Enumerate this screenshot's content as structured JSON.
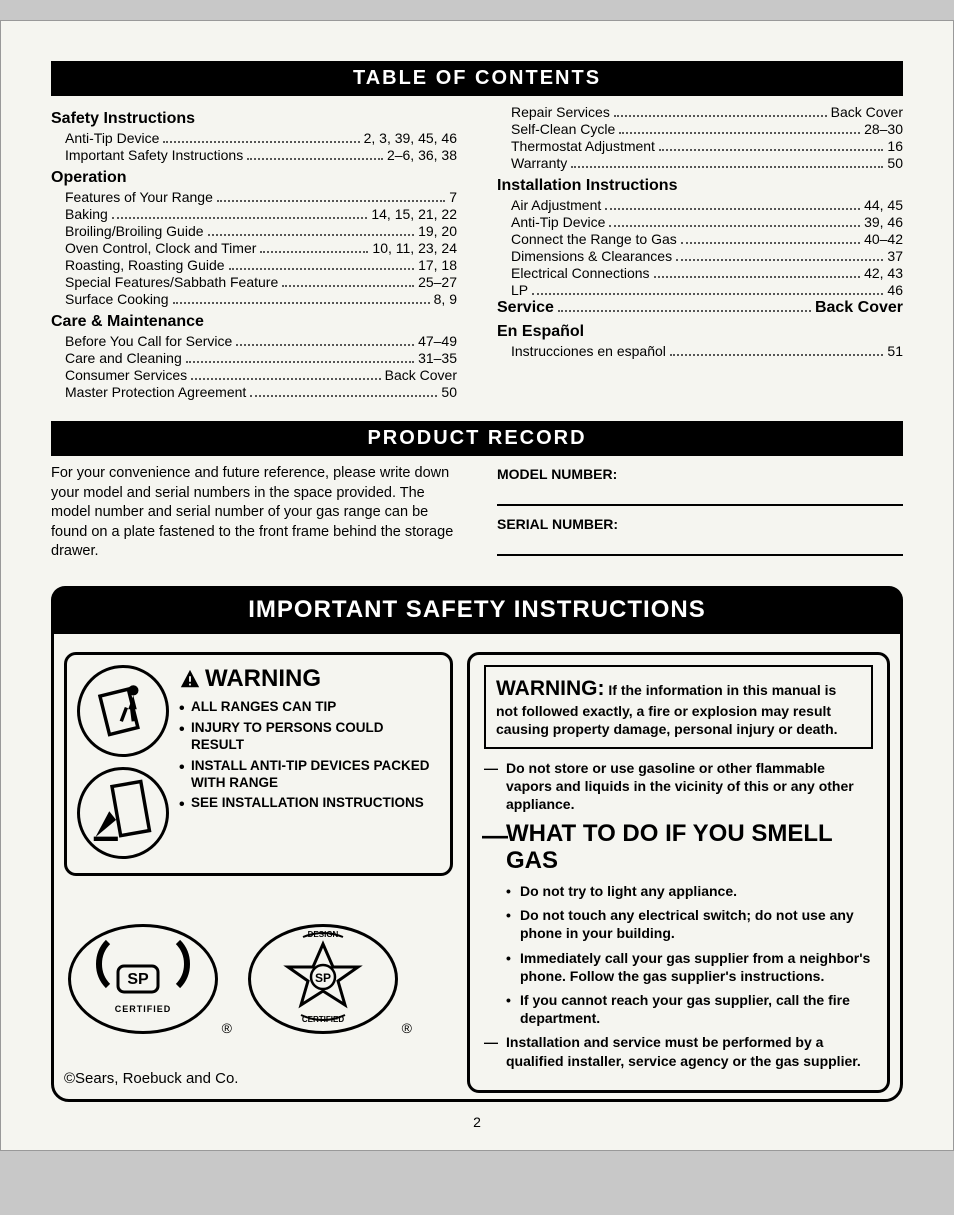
{
  "header_toc": "TABLE OF CONTENTS",
  "header_product": "PRODUCT RECORD",
  "header_safety": "IMPORTANT SAFETY INSTRUCTIONS",
  "toc_left": [
    {
      "type": "heading",
      "text": "Safety Instructions"
    },
    {
      "type": "entry",
      "label": "Anti-Tip Device",
      "page": "2, 3, 39, 45, 46"
    },
    {
      "type": "entry",
      "label": "Important Safety Instructions",
      "page": "2–6, 36, 38"
    },
    {
      "type": "heading",
      "text": "Operation"
    },
    {
      "type": "entry",
      "label": "Features of Your Range",
      "page": "7"
    },
    {
      "type": "entry",
      "label": "Baking",
      "page": "14, 15, 21, 22"
    },
    {
      "type": "entry",
      "label": "Broiling/Broiling Guide",
      "page": "19, 20"
    },
    {
      "type": "entry",
      "label": "Oven Control, Clock and Timer",
      "page": "10, 11, 23, 24"
    },
    {
      "type": "entry",
      "label": "Roasting, Roasting Guide",
      "page": "17, 18"
    },
    {
      "type": "entry",
      "label": "Special Features/Sabbath Feature",
      "page": "25–27"
    },
    {
      "type": "entry",
      "label": "Surface Cooking",
      "page": "8, 9"
    },
    {
      "type": "heading",
      "text": "Care & Maintenance"
    },
    {
      "type": "entry",
      "label": "Before You Call for Service",
      "page": "47–49"
    },
    {
      "type": "entry",
      "label": "Care and Cleaning",
      "page": "31–35"
    },
    {
      "type": "entry",
      "label": "Consumer Services",
      "page": "Back Cover"
    },
    {
      "type": "entry",
      "label": "Master Protection Agreement",
      "page": "50"
    }
  ],
  "toc_right": [
    {
      "type": "entry",
      "label": "Repair Services",
      "page": "Back Cover"
    },
    {
      "type": "entry",
      "label": "Self-Clean Cycle",
      "page": "28–30"
    },
    {
      "type": "entry",
      "label": "Thermostat Adjustment",
      "page": "16"
    },
    {
      "type": "entry",
      "label": "Warranty",
      "page": "50"
    },
    {
      "type": "heading",
      "text": "Installation Instructions"
    },
    {
      "type": "entry",
      "label": "Air Adjustment",
      "page": "44, 45"
    },
    {
      "type": "entry",
      "label": "Anti-Tip Device",
      "page": "39, 46"
    },
    {
      "type": "entry",
      "label": "Connect the Range to Gas",
      "page": "40–42"
    },
    {
      "type": "entry",
      "label": "Dimensions & Clearances",
      "page": "37"
    },
    {
      "type": "entry",
      "label": "Electrical Connections",
      "page": "42, 43"
    },
    {
      "type": "entry",
      "label": "LP",
      "page": "46"
    },
    {
      "type": "service",
      "label": "Service",
      "page": "Back Cover"
    },
    {
      "type": "heading",
      "text": "En Español"
    },
    {
      "type": "entry",
      "label": "Instrucciones en español",
      "page": "51"
    }
  ],
  "product_record": {
    "intro": "For your convenience and future reference, please write down your model and serial numbers in the space provided. The model number and serial number of your gas range can be found on a plate fastened to the front frame behind the storage drawer.",
    "model_label": "MODEL NUMBER:",
    "serial_label": "SERIAL NUMBER:"
  },
  "warning_left": {
    "title": "WARNING",
    "bullets": [
      "ALL RANGES CAN TIP",
      "INJURY TO PERSONS COULD RESULT",
      "INSTALL ANTI-TIP DEVICES PACKED WITH RANGE",
      "SEE INSTALLATION INSTRUCTIONS"
    ]
  },
  "cert_labels": {
    "certified": "CERTIFIED",
    "design": "DESIGN",
    "reg": "®"
  },
  "warning_right": {
    "box_title": "WARNING:",
    "box_body": "If the information in this manual is not followed exactly, a fire or explosion may result causing property damage, personal injury or death.",
    "dash1": "Do not store or use gasoline or other flammable vapors and liquids in the vicinity of this or any other appliance.",
    "smell_title": "WHAT TO DO IF YOU SMELL GAS",
    "bullets": [
      "Do not try to light any appliance.",
      "Do not touch any electrical switch; do not use any phone in your building.",
      "Immediately call your gas supplier from a neighbor's phone. Follow the gas supplier's instructions.",
      "If you cannot reach your gas supplier, call the fire department."
    ],
    "dash2": "Installation and service must be performed by a qualified installer, service agency or the gas supplier."
  },
  "footer": "©Sears, Roebuck and Co.",
  "page_number": "2",
  "colors": {
    "page_bg": "#f5f5f0",
    "ink": "#000000"
  }
}
